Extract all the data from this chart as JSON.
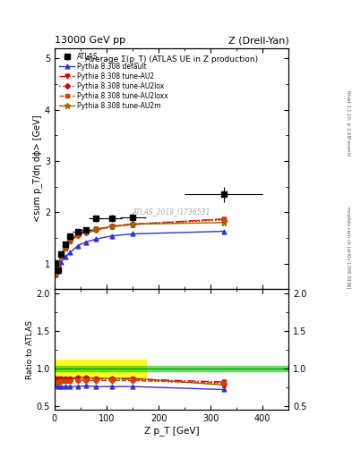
{
  "title_top_left": "13000 GeV pp",
  "title_top_right": "Z (Drell-Yan)",
  "main_title": "Average Σ(p_T) (ATLAS UE in Z production)",
  "right_label_top": "Rivet 3.1.10, ≥ 2.6M events",
  "right_label_bot": "mcplots.cern.ch [arXiv:1306.3436]",
  "watermark": "ATLAS_2019_I1736531",
  "ylabel_main": "<sum p_T/dη dϕ> [GeV]",
  "ylabel_ratio": "Ratio to ATLAS",
  "xlabel": "Z p_T [GeV]",
  "ylim_main": [
    0.5,
    5.2
  ],
  "ylim_ratio": [
    0.45,
    2.05
  ],
  "xlim": [
    0,
    450
  ],
  "atlas_x": [
    2.5,
    7.5,
    12.5,
    20,
    30,
    45,
    60,
    80,
    110,
    150,
    325
  ],
  "atlas_y": [
    1.01,
    0.88,
    1.18,
    1.38,
    1.53,
    1.63,
    1.65,
    1.88,
    1.88,
    1.9,
    2.35
  ],
  "atlas_yerr": [
    0.04,
    0.04,
    0.04,
    0.04,
    0.04,
    0.04,
    0.05,
    0.06,
    0.07,
    0.08,
    0.15
  ],
  "atlas_xerr_lo": [
    2.5,
    2.5,
    2.5,
    5,
    5,
    10,
    10,
    15,
    20,
    25,
    75
  ],
  "atlas_xerr_hi": [
    2.5,
    2.5,
    2.5,
    5,
    5,
    10,
    10,
    15,
    20,
    25,
    75
  ],
  "default_x": [
    2.5,
    7.5,
    12.5,
    20,
    30,
    45,
    60,
    80,
    110,
    150,
    325
  ],
  "default_y": [
    0.78,
    0.86,
    1.03,
    1.13,
    1.22,
    1.35,
    1.42,
    1.48,
    1.54,
    1.58,
    1.63
  ],
  "au2_x": [
    2.5,
    7.5,
    12.5,
    20,
    30,
    45,
    60,
    80,
    110,
    150,
    325
  ],
  "au2_y": [
    0.82,
    0.93,
    1.18,
    1.33,
    1.46,
    1.58,
    1.63,
    1.67,
    1.73,
    1.77,
    1.87
  ],
  "au2lox_x": [
    2.5,
    7.5,
    12.5,
    20,
    30,
    45,
    60,
    80,
    110,
    150,
    325
  ],
  "au2lox_y": [
    0.8,
    0.91,
    1.16,
    1.31,
    1.44,
    1.55,
    1.6,
    1.65,
    1.72,
    1.76,
    1.85
  ],
  "au2loxx_x": [
    2.5,
    7.5,
    12.5,
    20,
    30,
    45,
    60,
    80,
    110,
    150,
    325
  ],
  "au2loxx_y": [
    0.79,
    0.9,
    1.15,
    1.3,
    1.43,
    1.55,
    1.6,
    1.65,
    1.72,
    1.76,
    1.87
  ],
  "au2m_x": [
    2.5,
    7.5,
    12.5,
    20,
    30,
    45,
    60,
    80,
    110,
    150,
    325
  ],
  "au2m_y": [
    0.82,
    0.93,
    1.18,
    1.33,
    1.46,
    1.58,
    1.63,
    1.67,
    1.73,
    1.77,
    1.8
  ],
  "color_default": "#3333cc",
  "color_au2": "#cc0000",
  "color_au2lox": "#cc0000",
  "color_au2loxx": "#cc4400",
  "color_au2m": "#996600",
  "green_band_ylo": 0.96,
  "green_band_yhi": 1.04,
  "yellow_band_xlo": 0,
  "yellow_band_xhi": 175,
  "yellow_band_ylo": 0.88,
  "yellow_band_yhi": 1.12,
  "ratio_default_y": [
    0.77,
    0.76,
    0.76,
    0.76,
    0.76,
    0.76,
    0.77,
    0.76,
    0.76,
    0.76,
    0.72
  ],
  "ratio_au2_y": [
    0.86,
    0.86,
    0.86,
    0.86,
    0.86,
    0.87,
    0.87,
    0.86,
    0.86,
    0.86,
    0.82
  ],
  "ratio_au2lox_y": [
    0.83,
    0.83,
    0.84,
    0.84,
    0.84,
    0.85,
    0.85,
    0.84,
    0.84,
    0.84,
    0.8
  ],
  "ratio_au2loxx_y": [
    0.82,
    0.82,
    0.83,
    0.83,
    0.83,
    0.84,
    0.84,
    0.84,
    0.84,
    0.84,
    0.81
  ],
  "ratio_au2m_y": [
    0.87,
    0.87,
    0.87,
    0.87,
    0.87,
    0.88,
    0.88,
    0.87,
    0.87,
    0.87,
    0.78
  ],
  "ratio_au2_yerr": [
    0.01,
    0.01,
    0.01,
    0.01,
    0.01,
    0.01,
    0.01,
    0.01,
    0.01,
    0.01,
    0.02
  ],
  "ratio_au2lox_yerr": [
    0.01,
    0.01,
    0.01,
    0.01,
    0.01,
    0.01,
    0.01,
    0.01,
    0.01,
    0.01,
    0.02
  ],
  "ratio_au2loxx_yerr": [
    0.01,
    0.01,
    0.01,
    0.01,
    0.01,
    0.01,
    0.01,
    0.01,
    0.01,
    0.01,
    0.02
  ],
  "legend_labels": [
    "ATLAS",
    "Pythia 8.308 default",
    "Pythia 8.308 tune-AU2",
    "Pythia 8.308 tune-AU2lox",
    "Pythia 8.308 tune-AU2loxx",
    "Pythia 8.308 tune-AU2m"
  ]
}
